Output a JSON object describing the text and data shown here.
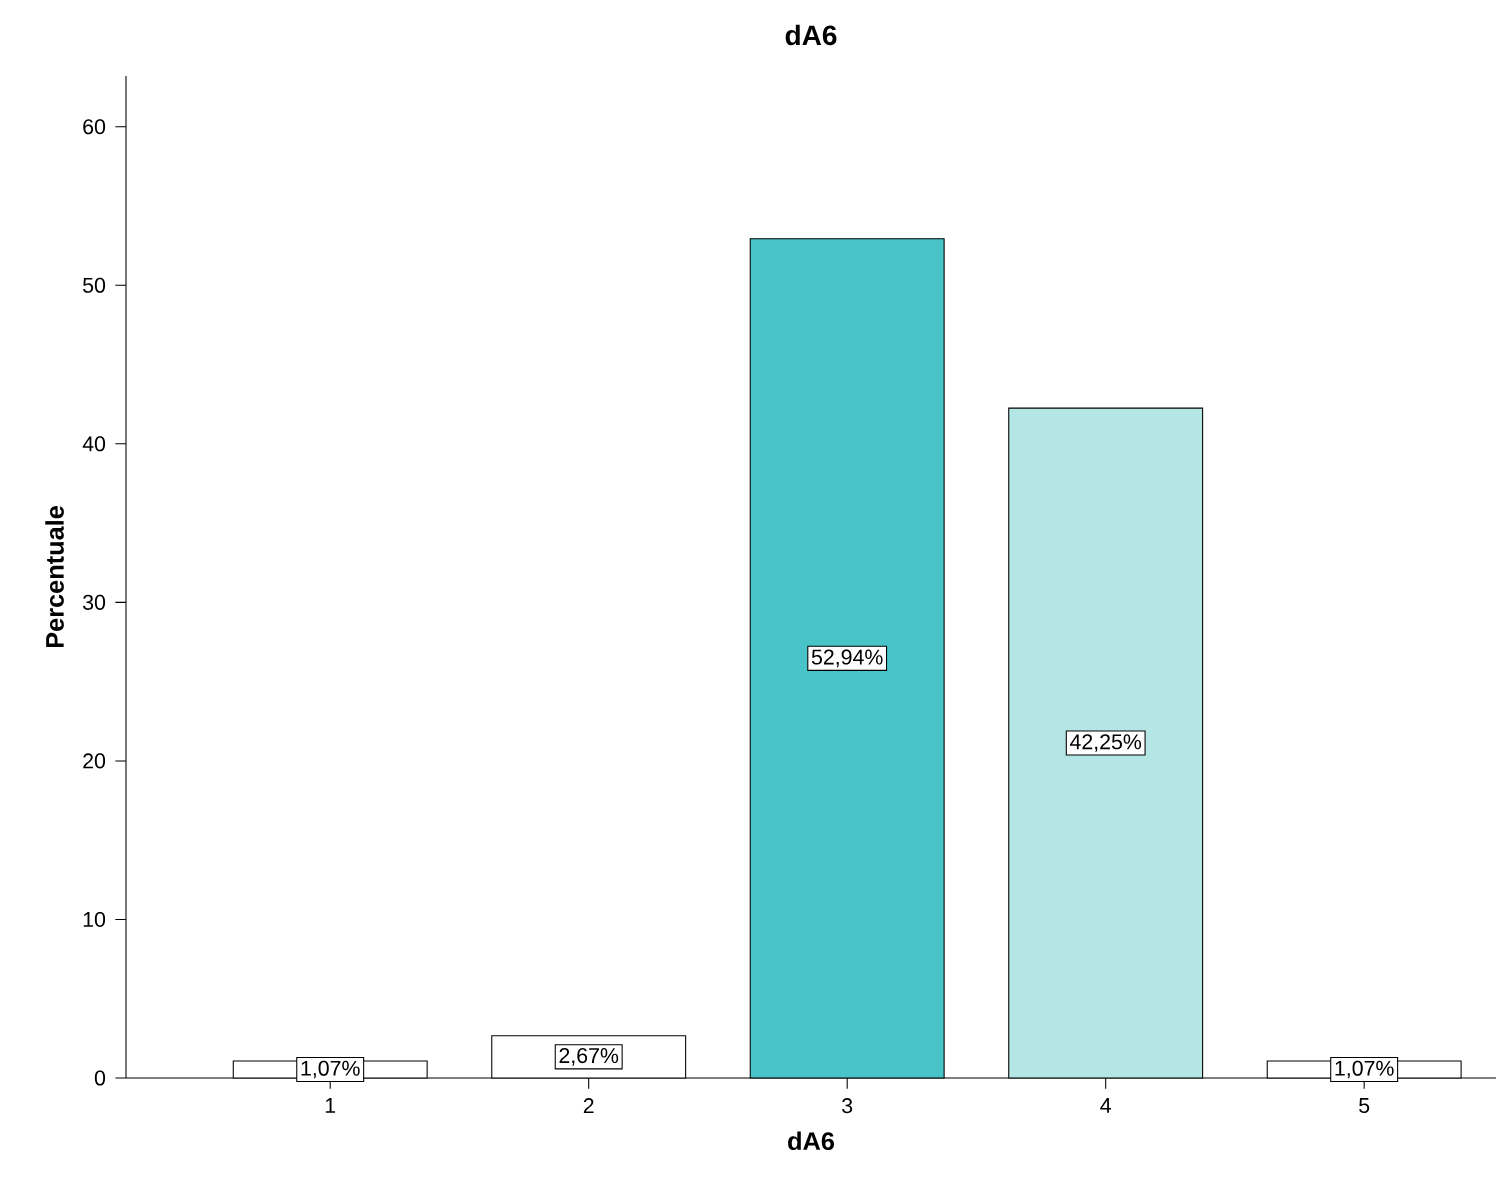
{
  "chart_data": {
    "type": "bar",
    "title": "dA6",
    "xlabel": "dA6",
    "ylabel": "Percentuale",
    "categories": [
      "1",
      "2",
      "3",
      "4",
      "5"
    ],
    "values": [
      1.07,
      2.67,
      52.94,
      42.25,
      1.07
    ],
    "colors": [
      "#ffffff",
      "#ffffff",
      "#48c4c8",
      "#b5e6e6",
      "#ffffff"
    ],
    "value_labels": [
      "1,07%",
      "2,67%",
      "52,94%",
      "42,25%",
      "1,07%"
    ],
    "ylim": [
      0,
      63.2
    ],
    "yticks": [
      0,
      10,
      20,
      30,
      40,
      50,
      60
    ],
    "grid": false
  }
}
